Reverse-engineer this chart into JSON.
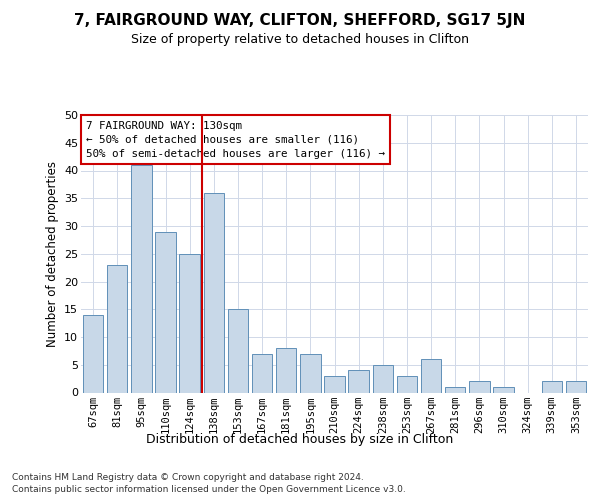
{
  "title1": "7, FAIRGROUND WAY, CLIFTON, SHEFFORD, SG17 5JN",
  "title2": "Size of property relative to detached houses in Clifton",
  "xlabel": "Distribution of detached houses by size in Clifton",
  "ylabel": "Number of detached properties",
  "categories": [
    "67sqm",
    "81sqm",
    "95sqm",
    "110sqm",
    "124sqm",
    "138sqm",
    "153sqm",
    "167sqm",
    "181sqm",
    "195sqm",
    "210sqm",
    "224sqm",
    "238sqm",
    "253sqm",
    "267sqm",
    "281sqm",
    "296sqm",
    "310sqm",
    "324sqm",
    "339sqm",
    "353sqm"
  ],
  "values": [
    14,
    23,
    41,
    29,
    25,
    36,
    15,
    7,
    8,
    7,
    3,
    4,
    5,
    3,
    6,
    1,
    2,
    1,
    0,
    2,
    2
  ],
  "bar_color": "#c8d8e8",
  "bar_edge_color": "#6090b8",
  "vline_x": 4.5,
  "vline_color": "#cc0000",
  "annotation_line1": "7 FAIRGROUND WAY: 130sqm",
  "annotation_line2": "← 50% of detached houses are smaller (116)",
  "annotation_line3": "50% of semi-detached houses are larger (116) →",
  "annotation_box_color": "#cc0000",
  "ylim": [
    0,
    50
  ],
  "yticks": [
    0,
    5,
    10,
    15,
    20,
    25,
    30,
    35,
    40,
    45,
    50
  ],
  "footer1": "Contains HM Land Registry data © Crown copyright and database right 2024.",
  "footer2": "Contains public sector information licensed under the Open Government Licence v3.0.",
  "bg_color": "#ffffff",
  "grid_color": "#d0d8e8"
}
